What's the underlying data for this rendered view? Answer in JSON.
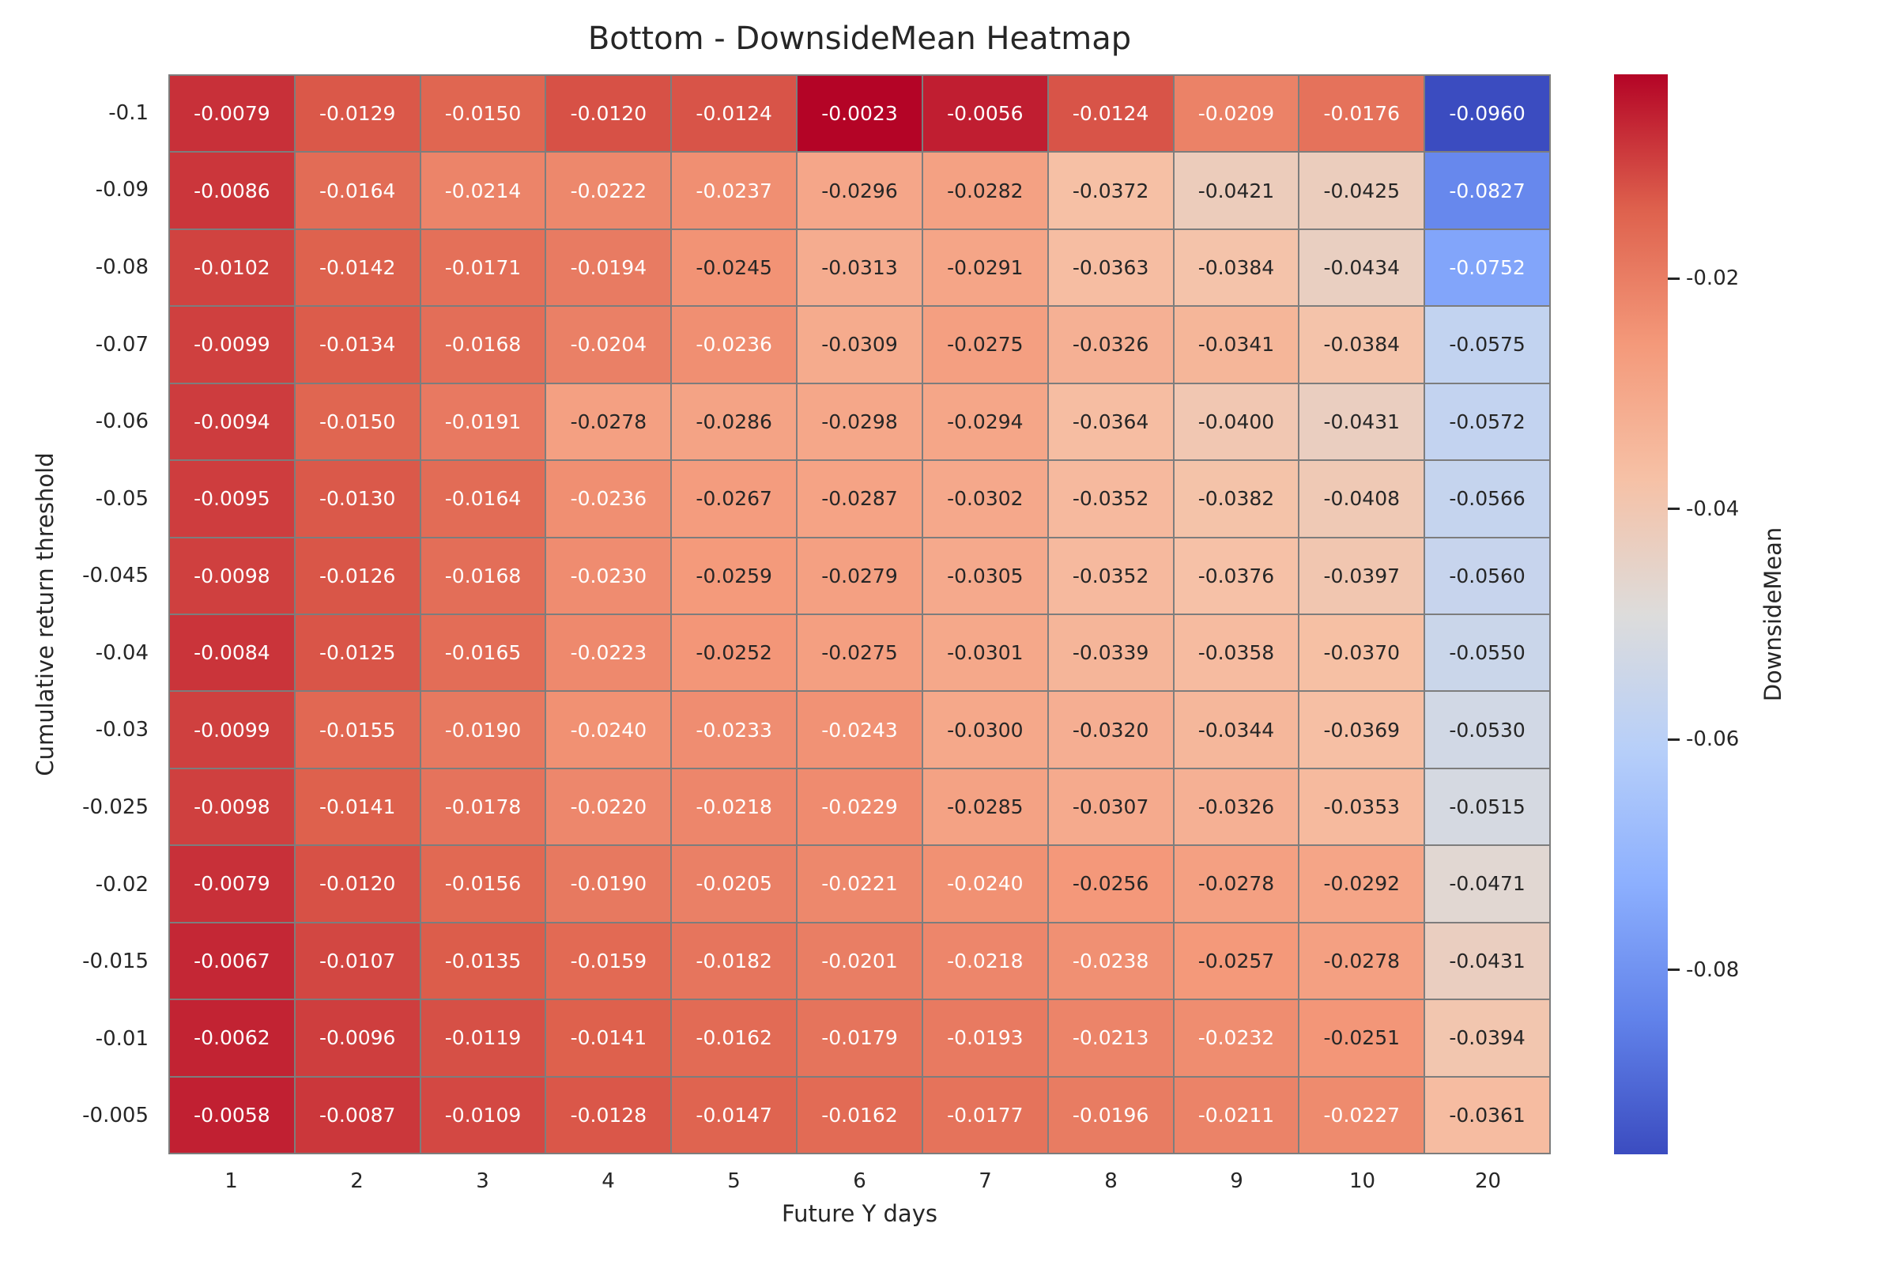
{
  "chart_data": {
    "type": "heatmap",
    "title": "Bottom - DownsideMean Heatmap",
    "xlabel": "Future Y days",
    "ylabel": "Cumulative return threshold",
    "colorbar_label": "DownsideMean",
    "colormap": "coolwarm",
    "vmin": -0.096,
    "vmax": -0.0023,
    "value_format_decimals": 4,
    "x_labels": [
      "1",
      "2",
      "3",
      "4",
      "5",
      "6",
      "7",
      "8",
      "9",
      "10",
      "20"
    ],
    "y_labels": [
      "-0.1",
      "-0.09",
      "-0.08",
      "-0.07",
      "-0.06",
      "-0.05",
      "-0.045",
      "-0.04",
      "-0.03",
      "-0.025",
      "-0.02",
      "-0.015",
      "-0.01",
      "-0.005"
    ],
    "values": [
      [
        -0.0079,
        -0.0129,
        -0.015,
        -0.012,
        -0.0124,
        -0.0023,
        -0.0056,
        -0.0124,
        -0.0209,
        -0.0176,
        -0.096
      ],
      [
        -0.0086,
        -0.0164,
        -0.0214,
        -0.0222,
        -0.0237,
        -0.0296,
        -0.0282,
        -0.0372,
        -0.0421,
        -0.0425,
        -0.0827
      ],
      [
        -0.0102,
        -0.0142,
        -0.0171,
        -0.0194,
        -0.0245,
        -0.0313,
        -0.0291,
        -0.0363,
        -0.0384,
        -0.0434,
        -0.0752
      ],
      [
        -0.0099,
        -0.0134,
        -0.0168,
        -0.0204,
        -0.0236,
        -0.0309,
        -0.0275,
        -0.0326,
        -0.0341,
        -0.0384,
        -0.0575
      ],
      [
        -0.0094,
        -0.015,
        -0.0191,
        -0.0278,
        -0.0286,
        -0.0298,
        -0.0294,
        -0.0364,
        -0.04,
        -0.0431,
        -0.0572
      ],
      [
        -0.0095,
        -0.013,
        -0.0164,
        -0.0236,
        -0.0267,
        -0.0287,
        -0.0302,
        -0.0352,
        -0.0382,
        -0.0408,
        -0.0566
      ],
      [
        -0.0098,
        -0.0126,
        -0.0168,
        -0.023,
        -0.0259,
        -0.0279,
        -0.0305,
        -0.0352,
        -0.0376,
        -0.0397,
        -0.056
      ],
      [
        -0.0084,
        -0.0125,
        -0.0165,
        -0.0223,
        -0.0252,
        -0.0275,
        -0.0301,
        -0.0339,
        -0.0358,
        -0.037,
        -0.055
      ],
      [
        -0.0099,
        -0.0155,
        -0.019,
        -0.024,
        -0.0233,
        -0.0243,
        -0.03,
        -0.032,
        -0.0344,
        -0.0369,
        -0.053
      ],
      [
        -0.0098,
        -0.0141,
        -0.0178,
        -0.022,
        -0.0218,
        -0.0229,
        -0.0285,
        -0.0307,
        -0.0326,
        -0.0353,
        -0.0515
      ],
      [
        -0.0079,
        -0.012,
        -0.0156,
        -0.019,
        -0.0205,
        -0.0221,
        -0.024,
        -0.0256,
        -0.0278,
        -0.0292,
        -0.0471
      ],
      [
        -0.0067,
        -0.0107,
        -0.0135,
        -0.0159,
        -0.0182,
        -0.0201,
        -0.0218,
        -0.0238,
        -0.0257,
        -0.0278,
        -0.0431
      ],
      [
        -0.0062,
        -0.0096,
        -0.0119,
        -0.0141,
        -0.0162,
        -0.0179,
        -0.0193,
        -0.0213,
        -0.0232,
        -0.0251,
        -0.0394
      ],
      [
        -0.0058,
        -0.0087,
        -0.0109,
        -0.0128,
        -0.0147,
        -0.0162,
        -0.0177,
        -0.0196,
        -0.0211,
        -0.0227,
        -0.0361
      ]
    ],
    "colorbar_ticks": [
      "-0.02",
      "-0.04",
      "-0.06",
      "-0.08"
    ],
    "grid_on": false,
    "legend_position": "colorbar-right"
  },
  "colors": {
    "gridline": "#7d7d7d",
    "text_dark": "#262626",
    "text_light": "#ffffff",
    "background": "#ffffff",
    "colorbar_top": "#b40426",
    "colorbar_bottom": "#3b4cc0"
  }
}
